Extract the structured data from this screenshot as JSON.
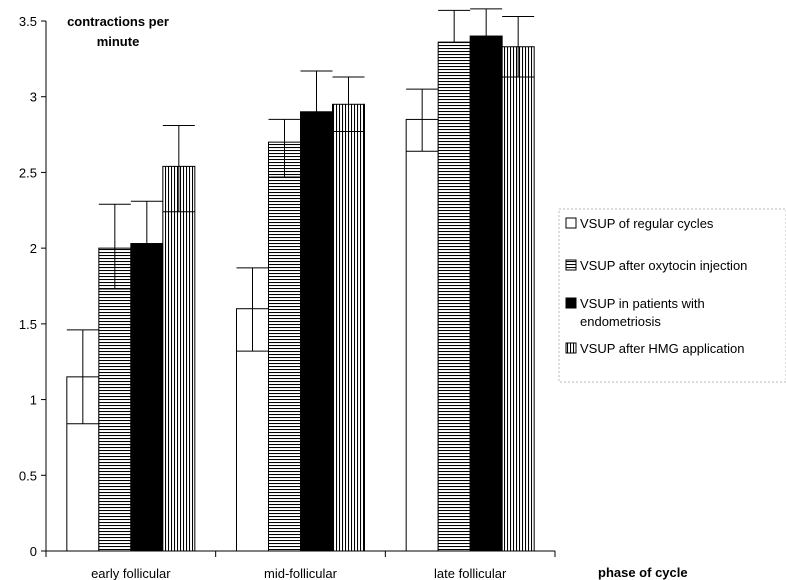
{
  "chart_data": {
    "type": "bar",
    "ylabel_line1": "contractions per",
    "ylabel_line2": "minute",
    "xlabel": "phase of cycle",
    "ylim": [
      0,
      3.5
    ],
    "y_ticks": [
      0,
      0.5,
      1,
      1.5,
      2,
      2.5,
      3,
      3.5
    ],
    "y_tick_labels": [
      "0",
      "0.5",
      "1",
      "1.5",
      "2",
      "2.5",
      "3",
      "3.5"
    ],
    "categories": [
      "early follicular",
      "mid-follicular",
      "late follicular"
    ],
    "legend_position": "right",
    "series": [
      {
        "name": "VSUP of regular cycles",
        "legend_lines": [
          "VSUP of regular cycles"
        ],
        "pattern": "white",
        "values": [
          1.15,
          1.6,
          2.85
        ],
        "error_upper": [
          1.46,
          1.87,
          3.05
        ],
        "error_lower": [
          0.84,
          1.32,
          2.64
        ]
      },
      {
        "name": "VSUP after oxytocin injection",
        "legend_lines": [
          "VSUP after oxytocin injection"
        ],
        "pattern": "horizontal",
        "values": [
          2.0,
          2.7,
          3.36
        ],
        "error_upper": [
          2.29,
          2.85,
          3.57
        ],
        "error_lower": [
          1.73,
          2.47,
          3.36
        ]
      },
      {
        "name": "VSUP in patients with endometriosis",
        "legend_lines": [
          "VSUP in patients with",
          "endometriosis"
        ],
        "pattern": "black",
        "values": [
          2.03,
          2.9,
          3.4
        ],
        "error_upper": [
          2.31,
          3.17,
          3.58
        ],
        "error_lower": [
          2.03,
          2.9,
          3.4
        ]
      },
      {
        "name": "VSUP after HMG application",
        "legend_lines": [
          "VSUP after HMG application"
        ],
        "pattern": "vertical",
        "values": [
          2.54,
          2.95,
          3.33
        ],
        "error_upper": [
          2.81,
          3.13,
          3.53
        ],
        "error_lower": [
          2.24,
          2.77,
          3.13
        ]
      }
    ]
  }
}
